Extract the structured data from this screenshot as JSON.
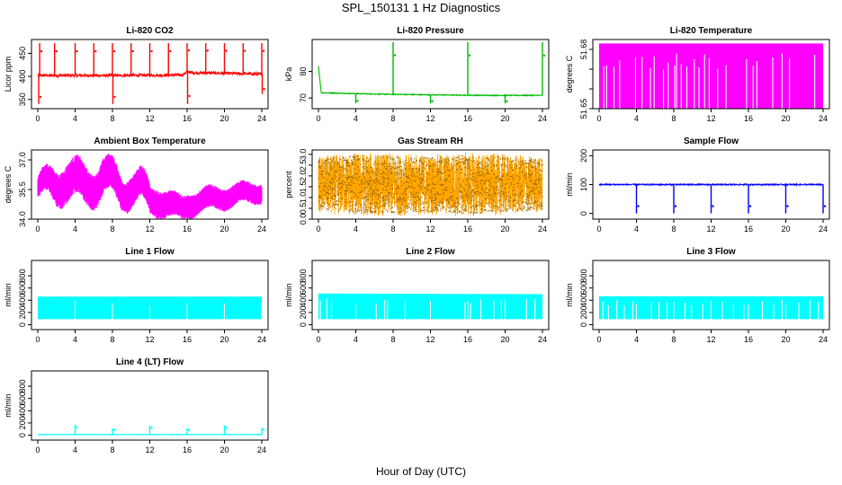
{
  "title": "SPL_150131  1 Hz Diagnostics",
  "xlabel_common": "Hour of Day (UTC)",
  "chart_data": [
    {
      "type": "line",
      "title": "Li-820 CO2",
      "ylabel": "Licor ppm",
      "color": "#ff0000",
      "xlim": [
        0,
        24
      ],
      "ylim": [
        330,
        480
      ],
      "xticks": [
        0,
        4,
        8,
        12,
        16,
        20,
        24
      ],
      "yticks": [
        350,
        400,
        450
      ],
      "series": [
        {
          "style": "noisy-line",
          "baseline": [
            [
              0,
              402
            ],
            [
              8,
              402
            ],
            [
              15.5,
              403
            ],
            [
              16,
              410
            ],
            [
              16.6,
              408
            ],
            [
              22,
              406
            ],
            [
              24,
              405
            ]
          ],
          "noise": 3,
          "spikes": [
            [
              0.1,
              340
            ],
            [
              0.2,
              472
            ],
            [
              1.8,
              472
            ],
            [
              4,
              472
            ],
            [
              6,
              472
            ],
            [
              8,
              472
            ],
            [
              8.05,
              340
            ],
            [
              10,
              472
            ],
            [
              12,
              472
            ],
            [
              14,
              472
            ],
            [
              16,
              472
            ],
            [
              16.05,
              340
            ],
            [
              18,
              472
            ],
            [
              20,
              472
            ],
            [
              22,
              472
            ],
            [
              24,
              472
            ],
            [
              24.05,
              362
            ]
          ]
        }
      ]
    },
    {
      "type": "line",
      "title": "Li-820 Pressure",
      "ylabel": "kPa",
      "color": "#00bb00",
      "xlim": [
        0,
        24
      ],
      "ylim": [
        66,
        92
      ],
      "xticks": [
        0,
        4,
        8,
        12,
        16,
        20,
        24
      ],
      "yticks": [
        70,
        80
      ],
      "series": [
        {
          "style": "noisy-line",
          "baseline": [
            [
              0,
              82
            ],
            [
              0.3,
              72
            ],
            [
              6,
              71.5
            ],
            [
              12,
              71.2
            ],
            [
              18,
              71
            ],
            [
              24,
              71
            ]
          ],
          "noise": 0.15,
          "spikes": [
            [
              4,
              68
            ],
            [
              8,
              91
            ],
            [
              12,
              68
            ],
            [
              16,
              91
            ],
            [
              20,
              68
            ],
            [
              24,
              91
            ]
          ]
        }
      ]
    },
    {
      "type": "area",
      "title": "Li-820 Temperature",
      "ylabel": "degrees C",
      "color": "#ff00ff",
      "xlim": [
        0,
        24
      ],
      "ylim": [
        51.65,
        51.685
      ],
      "xticks": [
        0,
        4,
        8,
        12,
        16,
        20,
        24
      ],
      "yticks": [
        51.65,
        51.66,
        51.67,
        51.68
      ],
      "ytick_labels": [
        "51.65",
        "",
        "",
        "51.68"
      ],
      "series": [
        {
          "style": "band",
          "baseline": [
            [
              0,
              51.683
            ],
            [
              24,
              51.683
            ]
          ],
          "lower": 51.65,
          "gaps": [
            0.5,
            0.8,
            1.6,
            2.2,
            3.9,
            4.6,
            5.5,
            5.9,
            6.9,
            7.4,
            8.1,
            8.3,
            8.8,
            9.4,
            10.2,
            10.7,
            11.3,
            11.8,
            12.7,
            13.6,
            15.8,
            16.5,
            16.9,
            18.6,
            19.6,
            20.4,
            23.1
          ]
        }
      ]
    },
    {
      "type": "line",
      "title": "Ambient Box Temperature",
      "ylabel": "degrees C",
      "color": "#ff00ff",
      "xlim": [
        0,
        24
      ],
      "ylim": [
        34,
        37.5
      ],
      "xticks": [
        0,
        4,
        8,
        12,
        16,
        20,
        24
      ],
      "yticks": [
        34.0,
        35.5,
        37.0
      ],
      "ytick_labels": [
        "34.0",
        "35.5",
        "37.0"
      ],
      "series": [
        {
          "style": "oscillating-band",
          "center": [
            [
              0,
              35.6
            ],
            [
              2,
              35.7
            ],
            [
              3,
              36.1
            ],
            [
              4,
              35.9
            ],
            [
              5,
              35.6
            ],
            [
              6,
              35.8
            ],
            [
              7,
              36.2
            ],
            [
              8,
              35.9
            ],
            [
              9,
              35.4
            ],
            [
              10,
              35.7
            ],
            [
              11,
              35.6
            ],
            [
              12,
              34.9
            ],
            [
              14,
              34.8
            ],
            [
              15.5,
              34.5
            ],
            [
              16,
              34.7
            ],
            [
              18,
              35.0
            ],
            [
              20,
              35.1
            ],
            [
              22,
              35.3
            ],
            [
              24,
              35.4
            ]
          ],
          "half_width": [
            [
              0,
              0.5
            ],
            [
              3,
              0.9
            ],
            [
              7,
              0.8
            ],
            [
              11,
              0.7
            ],
            [
              14,
              0.6
            ],
            [
              16,
              0.55
            ],
            [
              24,
              0.45
            ]
          ],
          "wave_period": 3.5,
          "wave_amp": 0.5
        }
      ]
    },
    {
      "type": "line",
      "title": "Gas Stream RH",
      "ylabel": "percent",
      "color": "#ffa500",
      "xlim": [
        0,
        24
      ],
      "ylim": [
        0,
        3.2
      ],
      "xticks": [
        0,
        4,
        8,
        12,
        16,
        20,
        24
      ],
      "yticks": [
        0.0,
        0.5,
        1.0,
        1.5,
        2.0,
        2.5,
        3.0
      ],
      "ytick_labels": [
        "0.0",
        "0.5",
        "1.0",
        "1.5",
        "2.0",
        "2.5",
        "3.0"
      ],
      "series": [
        {
          "style": "dense-noise",
          "center": [
            [
              0,
              1.6
            ],
            [
              24,
              1.6
            ]
          ],
          "half_width": [
            [
              0,
              1.3
            ],
            [
              4,
              1.5
            ],
            [
              12,
              1.4
            ],
            [
              16,
              1.5
            ],
            [
              24,
              1.3
            ]
          ]
        }
      ]
    },
    {
      "type": "line",
      "title": "Sample Flow",
      "ylabel": "ml/min",
      "color": "#0000ff",
      "xlim": [
        0,
        24
      ],
      "ylim": [
        -20,
        220
      ],
      "xticks": [
        0,
        4,
        8,
        12,
        16,
        20,
        24
      ],
      "yticks": [
        0,
        100,
        200
      ],
      "series": [
        {
          "style": "noisy-line",
          "baseline": [
            [
              0,
              100
            ],
            [
              24,
              100
            ]
          ],
          "noise": 2,
          "spikes": [
            [
              4,
              0
            ],
            [
              8,
              0
            ],
            [
              12,
              0
            ],
            [
              16,
              0
            ],
            [
              20,
              0
            ],
            [
              24,
              0
            ]
          ]
        }
      ]
    },
    {
      "type": "area",
      "title": "Line 1 Flow",
      "ylabel": "ml/min",
      "color": "#00ffff",
      "xlim": [
        0,
        24
      ],
      "ylim": [
        -80,
        1050
      ],
      "xticks": [
        0,
        4,
        8,
        12,
        16,
        20,
        24
      ],
      "yticks": [
        0,
        200,
        400,
        600,
        800
      ],
      "series": [
        {
          "style": "band",
          "baseline": [
            [
              0,
              460
            ],
            [
              24,
              460
            ]
          ],
          "lower": 90,
          "gaps": [
            4,
            8,
            12,
            16,
            20,
            24
          ]
        }
      ]
    },
    {
      "type": "area",
      "title": "Line 2 Flow",
      "ylabel": "ml/min",
      "color": "#00ffff",
      "xlim": [
        0,
        24
      ],
      "ylim": [
        -80,
        1050
      ],
      "xticks": [
        0,
        4,
        8,
        12,
        16,
        20,
        24
      ],
      "yticks": [
        0,
        200,
        400,
        600,
        800
      ],
      "series": [
        {
          "style": "band",
          "baseline": [
            [
              0,
              510
            ],
            [
              24,
              500
            ]
          ],
          "lower": 90,
          "gaps": [
            0.2,
            0.9,
            1.4,
            4,
            6.2,
            7.1,
            7.4,
            9.3,
            12,
            15.7,
            16,
            16.3,
            17.4,
            18.8,
            19.6,
            20,
            22.3,
            23.2
          ]
        }
      ]
    },
    {
      "type": "area",
      "title": "Line 3 Flow",
      "ylabel": "ml/min",
      "color": "#00ffff",
      "xlim": [
        0,
        24
      ],
      "ylim": [
        -80,
        1050
      ],
      "xticks": [
        0,
        4,
        8,
        12,
        16,
        20,
        24
      ],
      "yticks": [
        0,
        200,
        400,
        600,
        800
      ],
      "series": [
        {
          "style": "band",
          "baseline": [
            [
              0,
              465
            ],
            [
              24,
              465
            ]
          ],
          "lower": 90,
          "gaps": [
            0.4,
            1.0,
            1.9,
            2.7,
            3.6,
            4,
            5.6,
            6.4,
            7.3,
            8,
            9.2,
            9.9,
            11.1,
            12,
            13.2,
            14.4,
            15.5,
            16,
            17.5,
            18.7,
            19.6,
            20,
            21.4,
            22.6,
            23.5
          ]
        }
      ]
    },
    {
      "type": "line",
      "title": "Line 4 (LT) Flow",
      "ylabel": "ml/min",
      "color": "#00ffff",
      "xlim": [
        0,
        24
      ],
      "ylim": [
        -80,
        1050
      ],
      "xticks": [
        0,
        4,
        8,
        12,
        16,
        20,
        24
      ],
      "yticks": [
        0,
        200,
        400,
        600,
        800
      ],
      "series": [
        {
          "style": "noisy-line",
          "baseline": [
            [
              0,
              10
            ],
            [
              24,
              10
            ]
          ],
          "noise": 3,
          "spikes": [
            [
              4,
              170
            ],
            [
              8,
              110
            ],
            [
              12,
              160
            ],
            [
              16,
              110
            ],
            [
              20,
              160
            ],
            [
              24,
              120
            ]
          ]
        }
      ]
    }
  ]
}
